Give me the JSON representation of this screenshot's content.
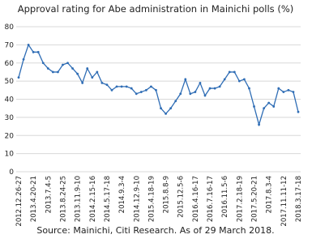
{
  "chart_data": {
    "type": "line",
    "title": "Approval rating for Abe administration in Mainichi polls (%)",
    "source": "Source: Mainichi, Citi Research. As of 29 March 2018.",
    "categories": [
      "2012.12.26-27",
      null,
      null,
      "2013.4.20-21",
      null,
      null,
      "2013.7.4-5",
      null,
      null,
      "2013.8.24-25",
      null,
      null,
      "2013.11.9-10",
      null,
      null,
      "2014.2.15-16",
      null,
      null,
      "2014.5.17-18",
      null,
      null,
      "2014.9.3-4",
      null,
      null,
      "2014.12.9-10",
      null,
      null,
      "2015.4.18-19",
      null,
      null,
      "2015.8.8-9",
      null,
      null,
      "2015.12.5-6",
      null,
      null,
      "2016.4.16-17",
      null,
      null,
      "2016.7.16-17",
      null,
      null,
      "2016.11.5-6",
      null,
      null,
      "2017.2.18-19",
      null,
      null,
      "2017.5.20-21",
      null,
      null,
      "2017.8.3-4",
      null,
      null,
      "2017.11.11-12",
      null,
      null,
      "2018.3.17-18"
    ],
    "series": [
      {
        "color": "#2f6db5",
        "values": [
          52,
          62,
          70,
          66,
          66,
          60,
          57,
          55,
          55,
          59,
          60,
          57,
          54,
          49,
          57,
          52,
          55,
          49,
          48,
          45,
          47,
          47,
          47,
          46,
          43,
          44,
          45,
          47,
          45,
          35,
          32,
          35,
          39,
          43,
          51,
          43,
          44,
          49,
          42,
          46,
          46,
          47,
          51,
          55,
          55,
          50,
          51,
          46,
          36,
          26,
          35,
          38,
          36,
          46,
          44,
          45,
          44,
          33
        ]
      }
    ],
    "ylim": [
      0,
      80
    ],
    "yticks": [
      0,
      10,
      20,
      30,
      40,
      50,
      60,
      70,
      80
    ],
    "grid": true
  }
}
